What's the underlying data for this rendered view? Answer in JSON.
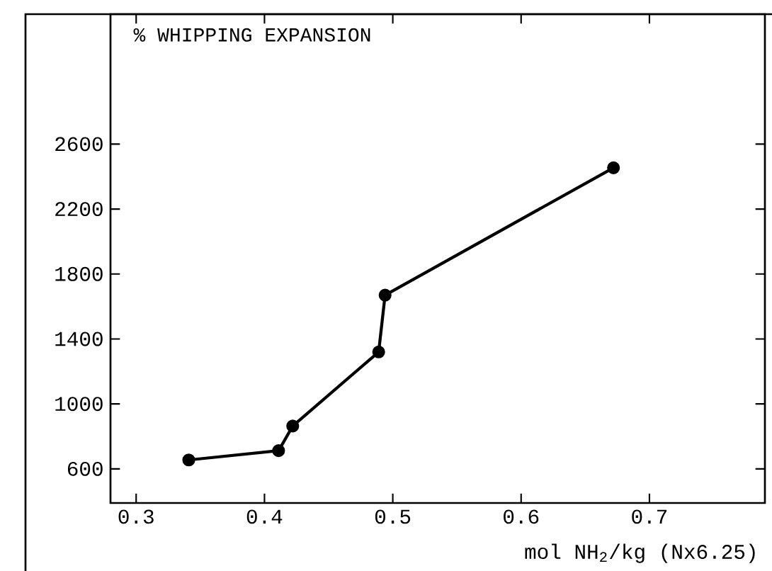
{
  "chart_data": {
    "type": "line",
    "ylabel": "% WHIPPING EXPANSION",
    "xlabel": "mol NH$_{2}$/kg  (Nx6.25)",
    "x": [
      0.341,
      0.411,
      0.422,
      0.489,
      0.494,
      0.672
    ],
    "series": [
      {
        "color": "#000000",
        "values": [
          655,
          712,
          864,
          1320,
          1670,
          2454
        ]
      }
    ],
    "marker": "circle",
    "line_style": "solid",
    "xlim": [
      0.28,
      0.79
    ],
    "xticks": [
      0.3,
      0.4,
      0.5,
      0.6,
      0.7
    ],
    "ylim": [
      390,
      3400
    ],
    "yticks": [
      600,
      1000,
      1400,
      1800,
      2200,
      2600
    ]
  }
}
